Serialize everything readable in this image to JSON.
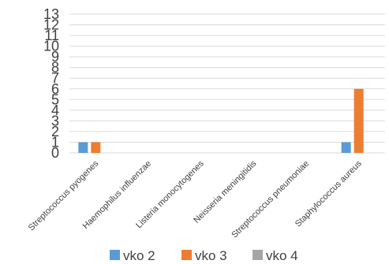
{
  "chart_data": {
    "type": "bar",
    "title": "",
    "xlabel": "",
    "ylabel": "",
    "ylim": [
      0,
      13
    ],
    "yticks": [
      0,
      1,
      2,
      3,
      4,
      5,
      6,
      7,
      8,
      9,
      10,
      11,
      12,
      13
    ],
    "grid": true,
    "legend_position": "bottom",
    "categories": [
      "Streptococcus pyogenes",
      "Haemophilus influenzae",
      "Listeria monocytogenes",
      "Neisseria meningitidis",
      "Streptococcus pneumoniae",
      "Staphylococcus aureus"
    ],
    "series": [
      {
        "name": "vko 2",
        "color": "#5b9bd5",
        "values": [
          1,
          0,
          0,
          0,
          0,
          1
        ]
      },
      {
        "name": "vko 3",
        "color": "#ed7d31",
        "values": [
          1,
          0,
          0,
          0,
          0,
          6
        ]
      },
      {
        "name": "vko 4",
        "color": "#a5a5a5",
        "values": [
          0,
          0,
          0,
          0,
          0,
          0
        ]
      }
    ]
  }
}
